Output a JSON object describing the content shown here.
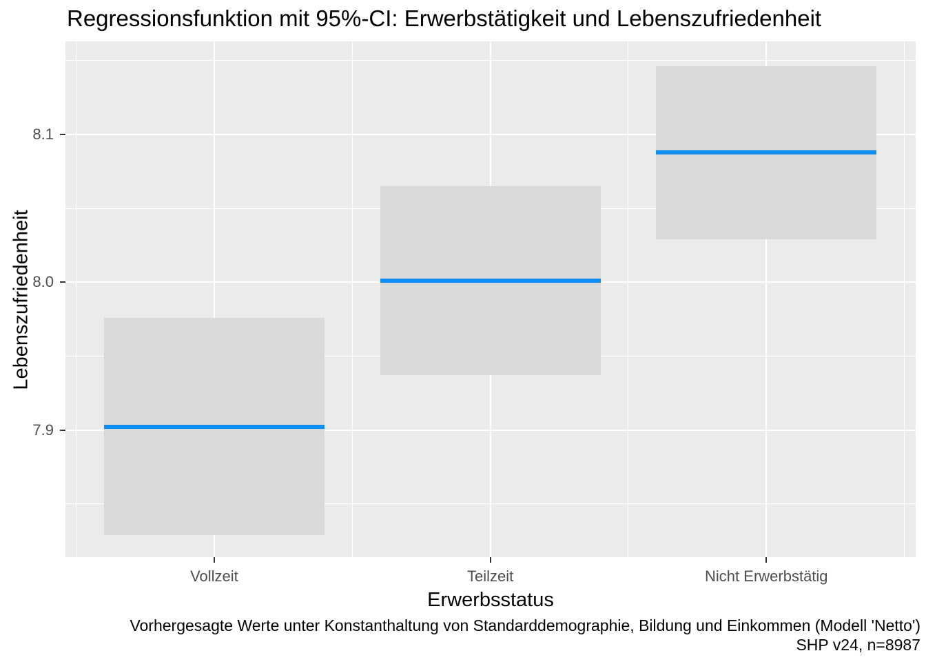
{
  "chart_data": {
    "type": "line",
    "subtype": "predicted values with confidence-interval ribbons per category",
    "title": "Regressionsfunktion mit 95%-CI: Erwerbstätigkeit und Lebenszufriedenheit",
    "xlabel": "Erwerbsstatus",
    "ylabel": "Lebenszufriedenheit",
    "categories": [
      "Vollzeit",
      "Teilzeit",
      "Nicht Erwerbstätig"
    ],
    "estimates": [
      7.902,
      8.001,
      8.088
    ],
    "ci_low": [
      7.829,
      7.937,
      8.029
    ],
    "ci_high": [
      7.976,
      8.065,
      8.146
    ],
    "ci_level": "95%",
    "ylim": [
      7.814,
      8.163
    ],
    "yticks": [
      7.9,
      8.0,
      8.1
    ],
    "yticks_minor": [
      7.85,
      7.95,
      8.05,
      8.15
    ],
    "grid": true,
    "legend": null,
    "caption_line1": "Vorhergesagte Werte unter Konstanthaltung von Standarddemographie, Bildung und Einkommen (Modell 'Netto')",
    "caption_line2": "SHP v24, n=8987",
    "colors": {
      "estimate_line": "#0d8df8",
      "ci_ribbon": "#d9d9d9",
      "panel_bg": "#ebebeb",
      "gridline": "#ffffff",
      "tick_label": "#4d4d4d",
      "tick_mark": "#333333",
      "text": "#000000"
    }
  }
}
